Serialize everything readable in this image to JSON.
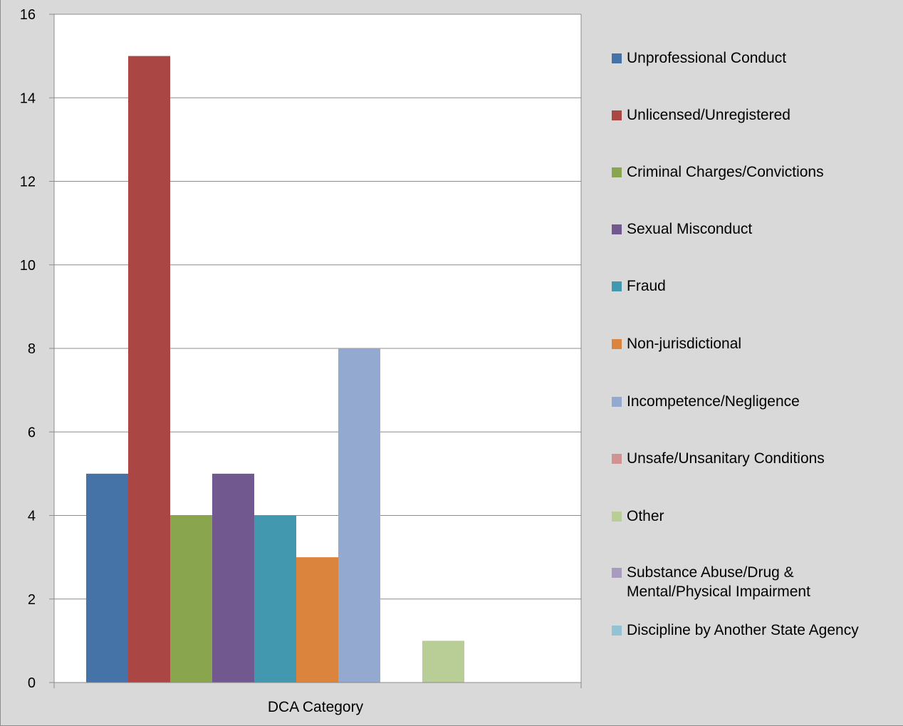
{
  "chart_data": {
    "type": "bar",
    "title": "",
    "xlabel": "",
    "ylabel": "",
    "categories": [
      "DCA Category"
    ],
    "category_label": "DCA Category",
    "ylim": [
      0,
      16
    ],
    "yticks": [
      0,
      2,
      4,
      6,
      8,
      10,
      12,
      14,
      16
    ],
    "grid": true,
    "legend_position": "right",
    "series": [
      {
        "name": "Unprofessional Conduct",
        "values": [
          5
        ],
        "color": "#4572a7"
      },
      {
        "name": "Unlicensed/Unregistered",
        "values": [
          15
        ],
        "color": "#aa4643"
      },
      {
        "name": "Criminal Charges/Convictions",
        "values": [
          4
        ],
        "color": "#89a54e"
      },
      {
        "name": "Sexual Misconduct",
        "values": [
          5
        ],
        "color": "#71588f"
      },
      {
        "name": "Fraud",
        "values": [
          4
        ],
        "color": "#4198af"
      },
      {
        "name": "Non-jurisdictional",
        "values": [
          3
        ],
        "color": "#db843d"
      },
      {
        "name": "Incompetence/Negligence",
        "values": [
          8
        ],
        "color": "#93a9cf"
      },
      {
        "name": "Unsafe/Unsanitary Conditions",
        "values": [
          0
        ],
        "color": "#d19392"
      },
      {
        "name": "Other",
        "values": [
          1
        ],
        "color": "#b9cd96"
      },
      {
        "name": "Substance Abuse/Drug &\nMental/Physical Impairment",
        "values": [
          0
        ],
        "color": "#a99bbd"
      },
      {
        "name": "Discipline by Another State Agency",
        "values": [
          0
        ],
        "color": "#91c3d5"
      }
    ]
  }
}
